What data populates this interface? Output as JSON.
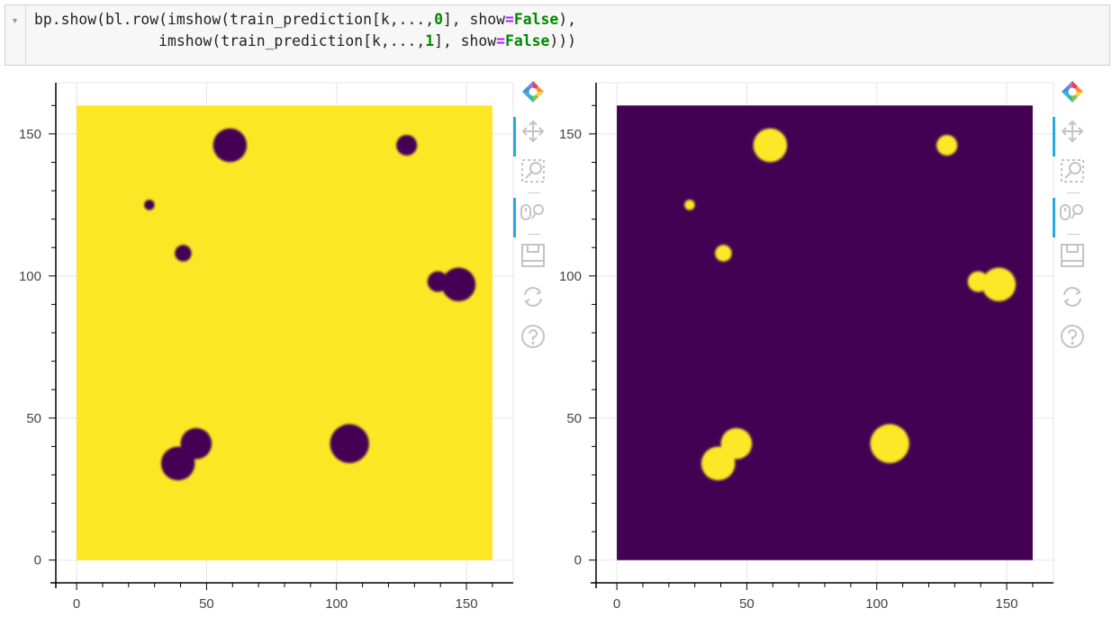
{
  "code_cell": {
    "collapse_icon": "triangle-down-icon",
    "line1": {
      "prefix": "bp.show(bl.row(imshow(train_prediction[k,...,",
      "num": "0",
      "mid": "], show",
      "eq": "=",
      "kw": "False",
      "suffix": "),"
    },
    "line2": {
      "prefix": "              imshow(train_prediction[k,...,",
      "num": "1",
      "mid": "], show",
      "eq": "=",
      "kw": "False",
      "suffix": ")))"
    }
  },
  "toolbar": {
    "icons": [
      "bokeh-logo-icon",
      "pan-icon",
      "box-zoom-icon",
      "wheel-zoom-icon",
      "save-icon",
      "reset-icon",
      "help-icon"
    ],
    "accent_color": "#26aae1"
  },
  "chart_data": [
    {
      "type": "heatmap",
      "colormap": "viridis",
      "background_color": "#fde725",
      "blob_color": "#440154",
      "xlim": [
        -8,
        168
      ],
      "ylim": [
        -8,
        168
      ],
      "image_extent": [
        0,
        160,
        0,
        160
      ],
      "xticks": [
        "0",
        "50",
        "100",
        "150"
      ],
      "yticks": [
        "0",
        "50",
        "100",
        "150"
      ],
      "grid": true,
      "blobs": [
        {
          "x": 59,
          "y": 146,
          "r": 6.5
        },
        {
          "x": 127,
          "y": 146,
          "r": 4
        },
        {
          "x": 28,
          "y": 125,
          "r": 2
        },
        {
          "x": 41,
          "y": 108,
          "r": 3.2
        },
        {
          "x": 139,
          "y": 98,
          "r": 4
        },
        {
          "x": 147,
          "y": 97,
          "r": 6.5
        },
        {
          "x": 105,
          "y": 41,
          "r": 7.5
        },
        {
          "x": 39,
          "y": 34,
          "r": 6.5
        },
        {
          "x": 46,
          "y": 41,
          "r": 6
        }
      ]
    },
    {
      "type": "heatmap",
      "colormap": "viridis",
      "background_color": "#440154",
      "blob_color": "#fde725",
      "xlim": [
        -8,
        168
      ],
      "ylim": [
        -8,
        168
      ],
      "image_extent": [
        0,
        160,
        0,
        160
      ],
      "xticks": [
        "0",
        "50",
        "100",
        "150"
      ],
      "yticks": [
        "0",
        "50",
        "100",
        "150"
      ],
      "grid": true,
      "blobs": [
        {
          "x": 59,
          "y": 146,
          "r": 6.5
        },
        {
          "x": 127,
          "y": 146,
          "r": 4
        },
        {
          "x": 28,
          "y": 125,
          "r": 2
        },
        {
          "x": 41,
          "y": 108,
          "r": 3.2
        },
        {
          "x": 139,
          "y": 98,
          "r": 4
        },
        {
          "x": 147,
          "y": 97,
          "r": 6.5
        },
        {
          "x": 105,
          "y": 41,
          "r": 7.5
        },
        {
          "x": 39,
          "y": 34,
          "r": 6.5
        },
        {
          "x": 46,
          "y": 41,
          "r": 6
        }
      ]
    }
  ]
}
